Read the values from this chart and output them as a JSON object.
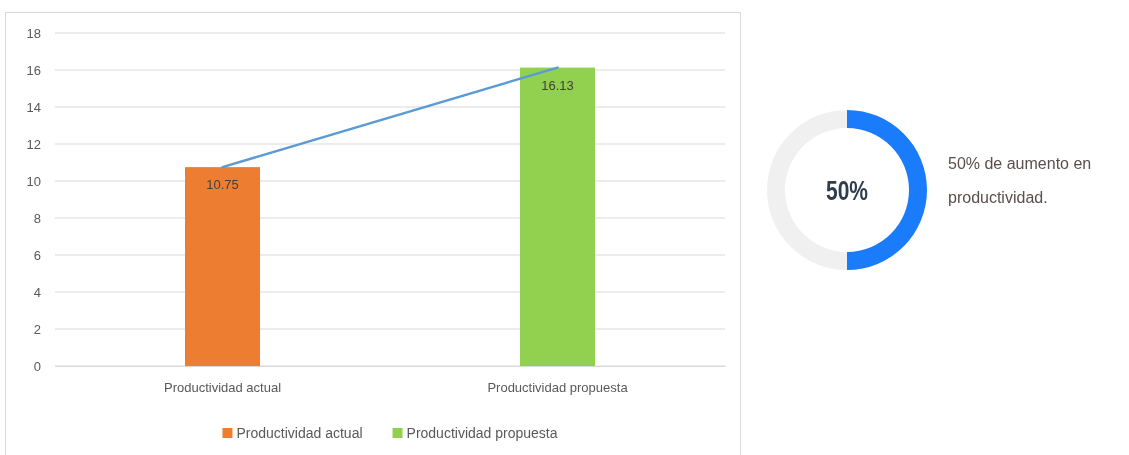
{
  "chart_data": [
    {
      "type": "bar",
      "categories": [
        "Productividad actual",
        "Productividad propuesta"
      ],
      "series": [
        {
          "name": "Productividad actual",
          "color": "#ed7d31",
          "values": [
            10.75,
            null
          ],
          "value_labels": [
            "10.75",
            null
          ]
        },
        {
          "name": "Productividad propuesta",
          "color": "#92d050",
          "values": [
            null,
            16.13
          ],
          "value_labels": [
            null,
            "16.13"
          ]
        },
        {
          "type": "line",
          "color": "#5b9bd5",
          "values": [
            10.75,
            16.13
          ]
        }
      ],
      "ylim": [
        0,
        18
      ],
      "yticks": [
        0,
        2,
        4,
        6,
        8,
        10,
        12,
        14,
        16,
        18
      ],
      "grid": "y",
      "legend": "bottom"
    },
    {
      "type": "donut",
      "categories": [
        null,
        null
      ],
      "values": [
        50,
        50
      ],
      "colors": [
        "#1a7cfa",
        "#f0f0f0"
      ],
      "annotations": [
        "50%",
        "50% de aumento en productividad."
      ]
    }
  ]
}
